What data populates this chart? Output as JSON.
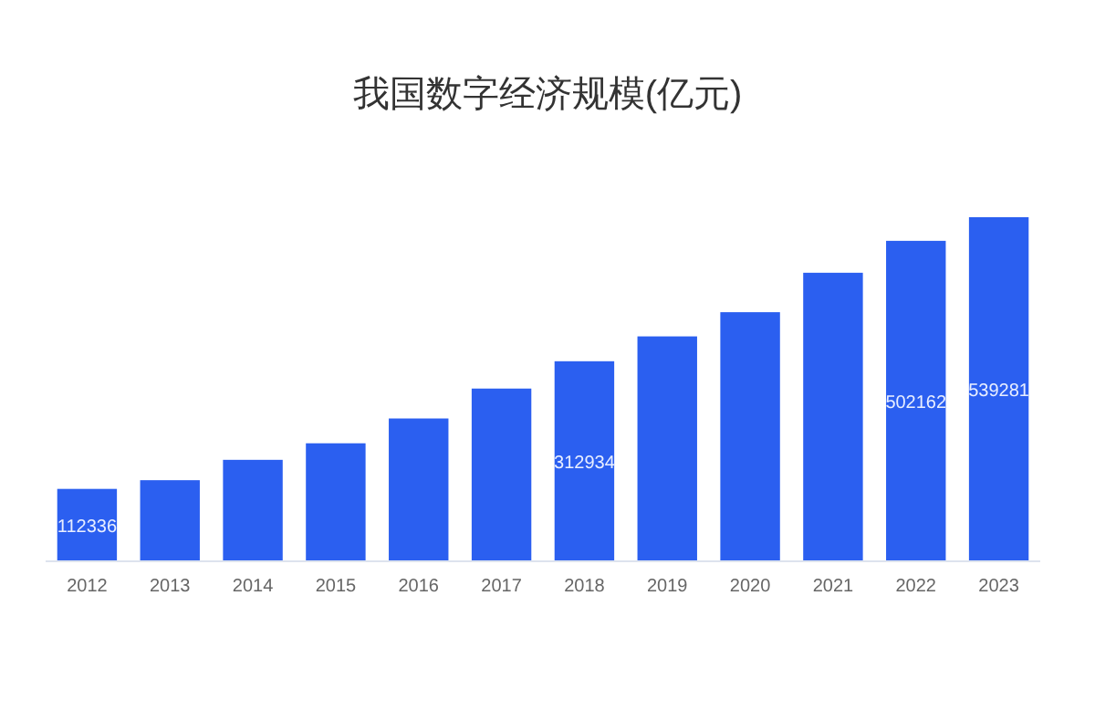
{
  "chart_data": {
    "type": "bar",
    "title": "我国数字经济规模(亿元)",
    "categories": [
      "2012",
      "2013",
      "2014",
      "2015",
      "2016",
      "2017",
      "2018",
      "2019",
      "2020",
      "2021",
      "2022",
      "2023"
    ],
    "values": [
      112336,
      126000,
      158000,
      184000,
      223000,
      270000,
      312934,
      352000,
      390000,
      452000,
      502162,
      539281
    ],
    "value_labels": [
      "112336",
      null,
      null,
      null,
      null,
      null,
      "312934",
      null,
      null,
      null,
      "502162",
      "539281"
    ],
    "color": "#2b5ff0"
  }
}
